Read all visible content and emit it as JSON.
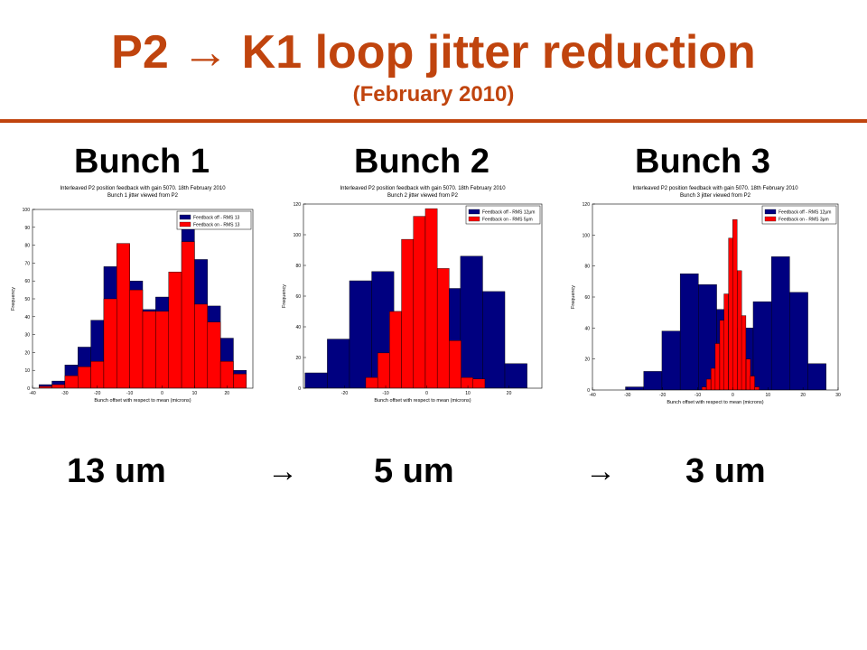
{
  "slide": {
    "title": "P2 → K1 loop jitter reduction",
    "subtitle": "(February 2010)",
    "accent_color": "#c0440e",
    "bunch_labels": [
      "Bunch 1",
      "Bunch 2",
      "Bunch 3"
    ],
    "rms_values": [
      "13 um",
      "5 um",
      "3 um"
    ],
    "arrow_glyph": "→"
  },
  "chart_data": [
    {
      "type": "bar",
      "title": "Interleaved P2 position feedback with gain 5070.  18th February 2010",
      "subtitle": "Bunch 1 jitter viewed from P2",
      "xlabel": "Bunch offset with respect to mean (microns)",
      "ylabel": "Frequency",
      "xlim": [
        -40,
        28
      ],
      "ylim": [
        0,
        100
      ],
      "xticks": [
        -40,
        -30,
        -20,
        -10,
        0,
        10,
        20
      ],
      "yticks": [
        0,
        10,
        20,
        30,
        40,
        50,
        60,
        70,
        80,
        90,
        100
      ],
      "legend_position": "top-right",
      "series": [
        {
          "name": "Feedback off - RMS 13",
          "color": "#000080",
          "bin_width": 4.0,
          "centers": [
            -36,
            -32,
            -28,
            -24,
            -20,
            -16,
            -12,
            -8,
            -4,
            0,
            4,
            8,
            12,
            16,
            20,
            24
          ],
          "values": [
            2,
            4,
            13,
            23,
            38,
            68,
            80,
            60,
            44,
            51,
            48,
            90,
            72,
            46,
            28,
            10
          ]
        },
        {
          "name": "Feedback on - RMS 13",
          "color": "#ff0000",
          "bin_width": 4.0,
          "centers": [
            -36,
            -32,
            -28,
            -24,
            -20,
            -16,
            -12,
            -8,
            -4,
            0,
            4,
            8,
            12,
            16,
            20,
            24
          ],
          "values": [
            1,
            2,
            7,
            12,
            15,
            50,
            81,
            55,
            43,
            43,
            65,
            82,
            47,
            37,
            15,
            8
          ]
        }
      ]
    },
    {
      "type": "bar",
      "title": "Interleaved P2 position feedback with gain 5070.  18th February 2010",
      "subtitle": "Bunch 2 jitter viewed from P2",
      "xlabel": "Bunch offset with respect to mean (microns)",
      "ylabel": "Frequency",
      "xlim": [
        -30,
        28
      ],
      "ylim": [
        0,
        120
      ],
      "xticks": [
        -20,
        -10,
        0,
        10,
        20
      ],
      "yticks": [
        0,
        20,
        40,
        60,
        80,
        100,
        120
      ],
      "legend_position": "top-right",
      "series": [
        {
          "name": "Feedback off - RMS 12μm",
          "color": "#000080",
          "bin_width": 5.4,
          "centers": [
            -26.9,
            -21.5,
            -16.1,
            -10.7,
            -5.3,
            0.1,
            5.5,
            10.9,
            16.3,
            21.7
          ],
          "values": [
            10,
            32,
            70,
            76,
            50,
            30,
            65,
            86,
            63,
            16
          ]
        },
        {
          "name": "Feedback on - RMS 5μm",
          "color": "#ff0000",
          "bin_width": 2.9,
          "centers": [
            -13.4,
            -10.5,
            -7.6,
            -4.7,
            -1.8,
            1.1,
            4.0,
            6.9,
            9.8,
            12.7
          ],
          "values": [
            7,
            23,
            50,
            97,
            112,
            117,
            78,
            31,
            7,
            6
          ]
        }
      ]
    },
    {
      "type": "bar",
      "title": "Interleaved P2 position feedback with gain 5070.  18th February 2010",
      "subtitle": "Bunch 3 jitter viewed from P2",
      "xlabel": "Bunch offset with respect to mean (microns)",
      "ylabel": "Frequency",
      "xlim": [
        -40,
        30
      ],
      "ylim": [
        0,
        120
      ],
      "xticks": [
        -40,
        -30,
        -20,
        -10,
        0,
        10,
        20,
        30
      ],
      "yticks": [
        0,
        20,
        40,
        60,
        80,
        100,
        120
      ],
      "legend_position": "top-right",
      "series": [
        {
          "name": "Feedback off - RMS 12μm",
          "color": "#000080",
          "bin_width": 5.2,
          "centers": [
            -28,
            -22.8,
            -17.6,
            -12.4,
            -7.2,
            -2,
            3.2,
            8.4,
            13.6,
            18.8,
            24
          ],
          "values": [
            2,
            12,
            38,
            75,
            68,
            52,
            40,
            57,
            86,
            63,
            17
          ]
        },
        {
          "name": "Feedback on - RMS 3μm",
          "color": "#ff0000",
          "bin_width": 1.25,
          "centers": [
            -8.2,
            -6.9,
            -5.6,
            -4.4,
            -3.1,
            -1.9,
            -0.6,
            0.6,
            1.9,
            3.1,
            4.4,
            5.6,
            6.9
          ],
          "values": [
            2,
            7,
            14,
            30,
            45,
            62,
            98,
            110,
            77,
            48,
            20,
            9,
            2
          ]
        }
      ]
    }
  ]
}
